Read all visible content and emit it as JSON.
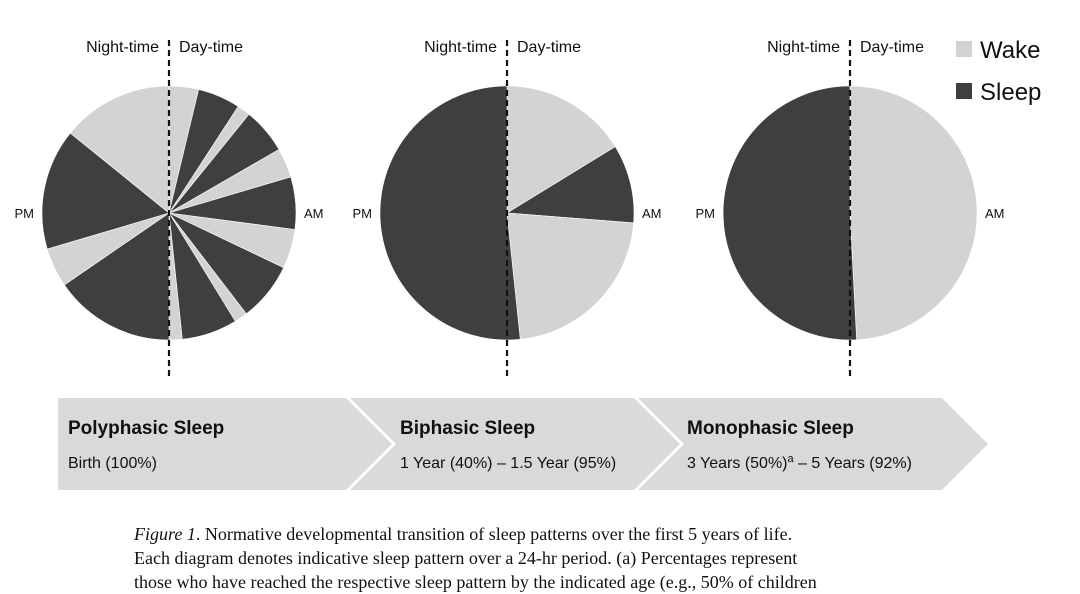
{
  "colors": {
    "wake": "#d3d3d3",
    "sleep": "#3f3f3f",
    "arrow_fill": "#d9d9d9"
  },
  "legend": {
    "wake_label": "Wake",
    "sleep_label": "Sleep"
  },
  "pies": [
    {
      "night_label": "Night-time",
      "day_label": "Day-time",
      "am_label": "AM",
      "pm_label": "PM",
      "segments": [
        {
          "state": "wake",
          "from": 0,
          "to": 0.9
        },
        {
          "state": "sleep",
          "from": 0.9,
          "to": 2.2
        },
        {
          "state": "wake",
          "from": 2.2,
          "to": 2.6
        },
        {
          "state": "sleep",
          "from": 2.6,
          "to": 4.0
        },
        {
          "state": "wake",
          "from": 4.0,
          "to": 4.9
        },
        {
          "state": "sleep",
          "from": 4.9,
          "to": 6.5
        },
        {
          "state": "wake",
          "from": 6.5,
          "to": 7.7
        },
        {
          "state": "sleep",
          "from": 7.7,
          "to": 9.5
        },
        {
          "state": "wake",
          "from": 9.5,
          "to": 9.9
        },
        {
          "state": "sleep",
          "from": 9.9,
          "to": 11.6
        },
        {
          "state": "wake",
          "from": 11.6,
          "to": 12.0
        },
        {
          "state": "sleep",
          "from": 12.0,
          "to": 15.7
        },
        {
          "state": "wake",
          "from": 15.7,
          "to": 16.9
        },
        {
          "state": "sleep",
          "from": 16.9,
          "to": 20.6
        },
        {
          "state": "wake",
          "from": 20.6,
          "to": 24.0
        }
      ]
    },
    {
      "night_label": "Night-time",
      "day_label": "Day-time",
      "am_label": "AM",
      "pm_label": "PM",
      "segments": [
        {
          "state": "wake",
          "from": 0,
          "to": 3.9
        },
        {
          "state": "sleep",
          "from": 3.9,
          "to": 6.3
        },
        {
          "state": "wake",
          "from": 6.3,
          "to": 11.6
        },
        {
          "state": "sleep",
          "from": 11.6,
          "to": 24.0
        }
      ]
    },
    {
      "night_label": "Night-time",
      "day_label": "Day-time",
      "am_label": "AM",
      "pm_label": "PM",
      "segments": [
        {
          "state": "wake",
          "from": 0,
          "to": 11.8
        },
        {
          "state": "sleep",
          "from": 11.8,
          "to": 24.0
        }
      ]
    }
  ],
  "stages": [
    {
      "title": "Polyphasic Sleep",
      "subtitle": "Birth (100%)"
    },
    {
      "title": "Biphasic Sleep",
      "subtitle": "1 Year (40%) – 1.5 Year (95%)"
    },
    {
      "title": "Monophasic Sleep",
      "subtitle_pre": "3 Years (50%)",
      "subtitle_sup": "a",
      "subtitle_post": " – 5 Years (92%)"
    }
  ],
  "caption": {
    "figure_label": "Figure 1",
    "line1_rest": ".   Normative developmental transition of sleep patterns over the first 5 years of life.",
    "line2": "Each diagram denotes indicative sleep pattern over a 24-hr period. (a) Percentages represent",
    "line3": "those who have reached the respective sleep pattern by the indicated age (e.g., 50% of children"
  }
}
